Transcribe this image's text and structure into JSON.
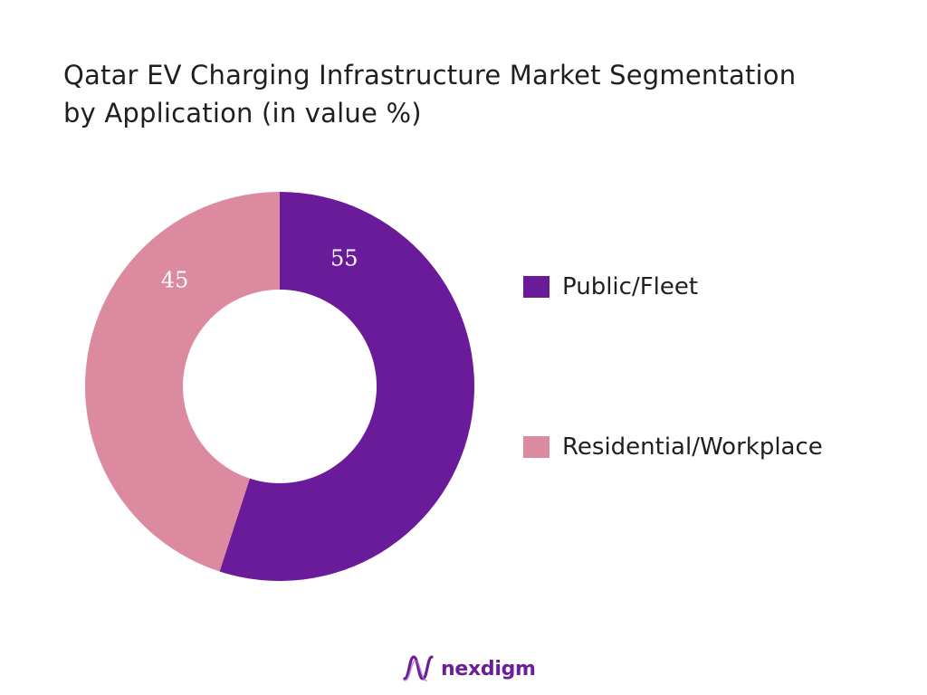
{
  "chart_data": {
    "type": "pie",
    "subtype": "donut",
    "title_lines": [
      "Qatar EV Charging Infrastructure Market Segmentation",
      "by Application (in value %)"
    ],
    "categories": [
      "Public/Fleet",
      "Residential/Workplace"
    ],
    "values": [
      55,
      45
    ],
    "data_labels": [
      "55",
      "45"
    ],
    "colors": [
      "#6a1b9a",
      "#dc8aa0"
    ],
    "legend_position": "right",
    "start": "top",
    "direction": "clockwise"
  },
  "brand": {
    "name": "nexdigm",
    "logo_icon": "nexdigm-wave-icon",
    "color": "#6a1f9a"
  }
}
